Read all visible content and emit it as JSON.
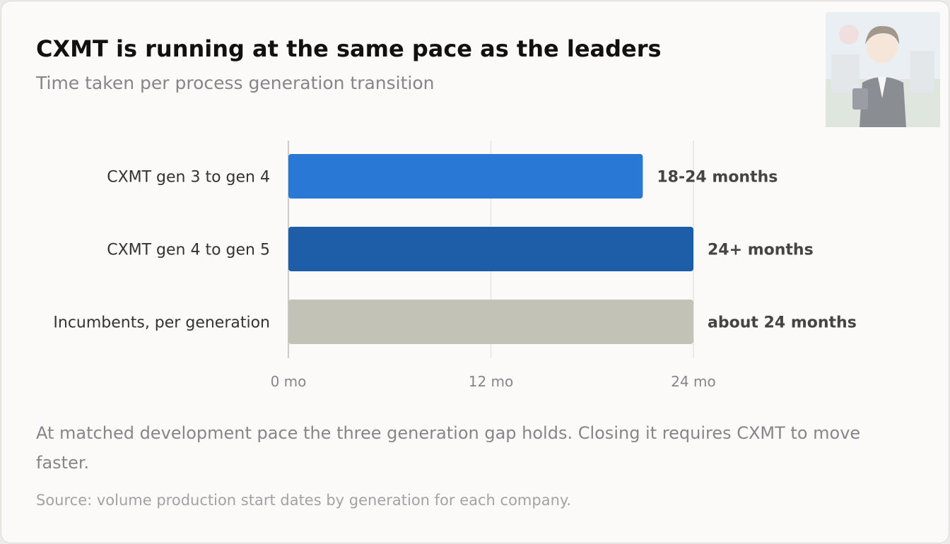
{
  "title": "CXMT is running at the same pace as the leaders",
  "subtitle": "Time taken per process generation transition",
  "note": "At matched development pace the three generation gap holds. Closing it requires CXMT to move faster.",
  "source": "Source: volume production start dates by generation for each company.",
  "chart_data": {
    "type": "bar",
    "orientation": "horizontal",
    "categories": [
      "CXMT gen 3 to gen 4",
      "CXMT gen 4 to gen 5",
      "Incumbents, per generation"
    ],
    "values": [
      21,
      24,
      24
    ],
    "value_labels": [
      "18-24 months",
      "24+ months",
      "about 24 months"
    ],
    "colors": [
      "#2a78d6",
      "#1e5da8",
      "#c2c2b6"
    ],
    "xticks": [
      0,
      12,
      24
    ],
    "xtick_labels": [
      "0 mo",
      "12 mo",
      "24 mo"
    ],
    "xlim": [
      0,
      24
    ],
    "grid": true
  }
}
